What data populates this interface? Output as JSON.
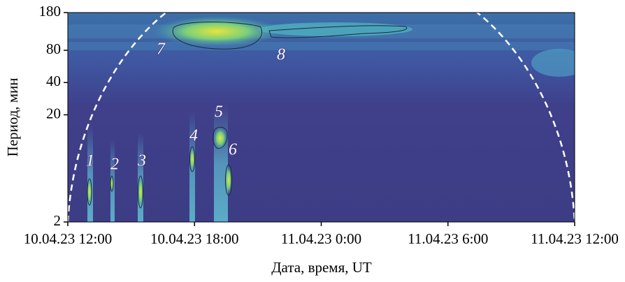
{
  "chart_data": {
    "type": "heatmap",
    "xlabel": "Дата, время, UT",
    "ylabel": "Период, мин",
    "xlim": [
      "2023-04-10T12:00",
      "2023-04-11T12:00"
    ],
    "xticks": [
      {
        "value": "2023-04-10T12:00",
        "label": "10.04.23 12:00"
      },
      {
        "value": "2023-04-10T18:00",
        "label": "10.04.23 18:00"
      },
      {
        "value": "2023-04-11T00:00",
        "label": "11.04.23 0:00"
      },
      {
        "value": "2023-04-11T06:00",
        "label": "11.04.23 6:00"
      },
      {
        "value": "2023-04-11T12:00",
        "label": "11.04.23 12:00"
      }
    ],
    "ylim": [
      2,
      180
    ],
    "yticks": [
      2,
      20,
      40,
      80,
      180
    ],
    "log_y": true,
    "annotations": [
      "1",
      "2",
      "3",
      "4",
      "5",
      "6",
      "7",
      "8"
    ]
  }
}
